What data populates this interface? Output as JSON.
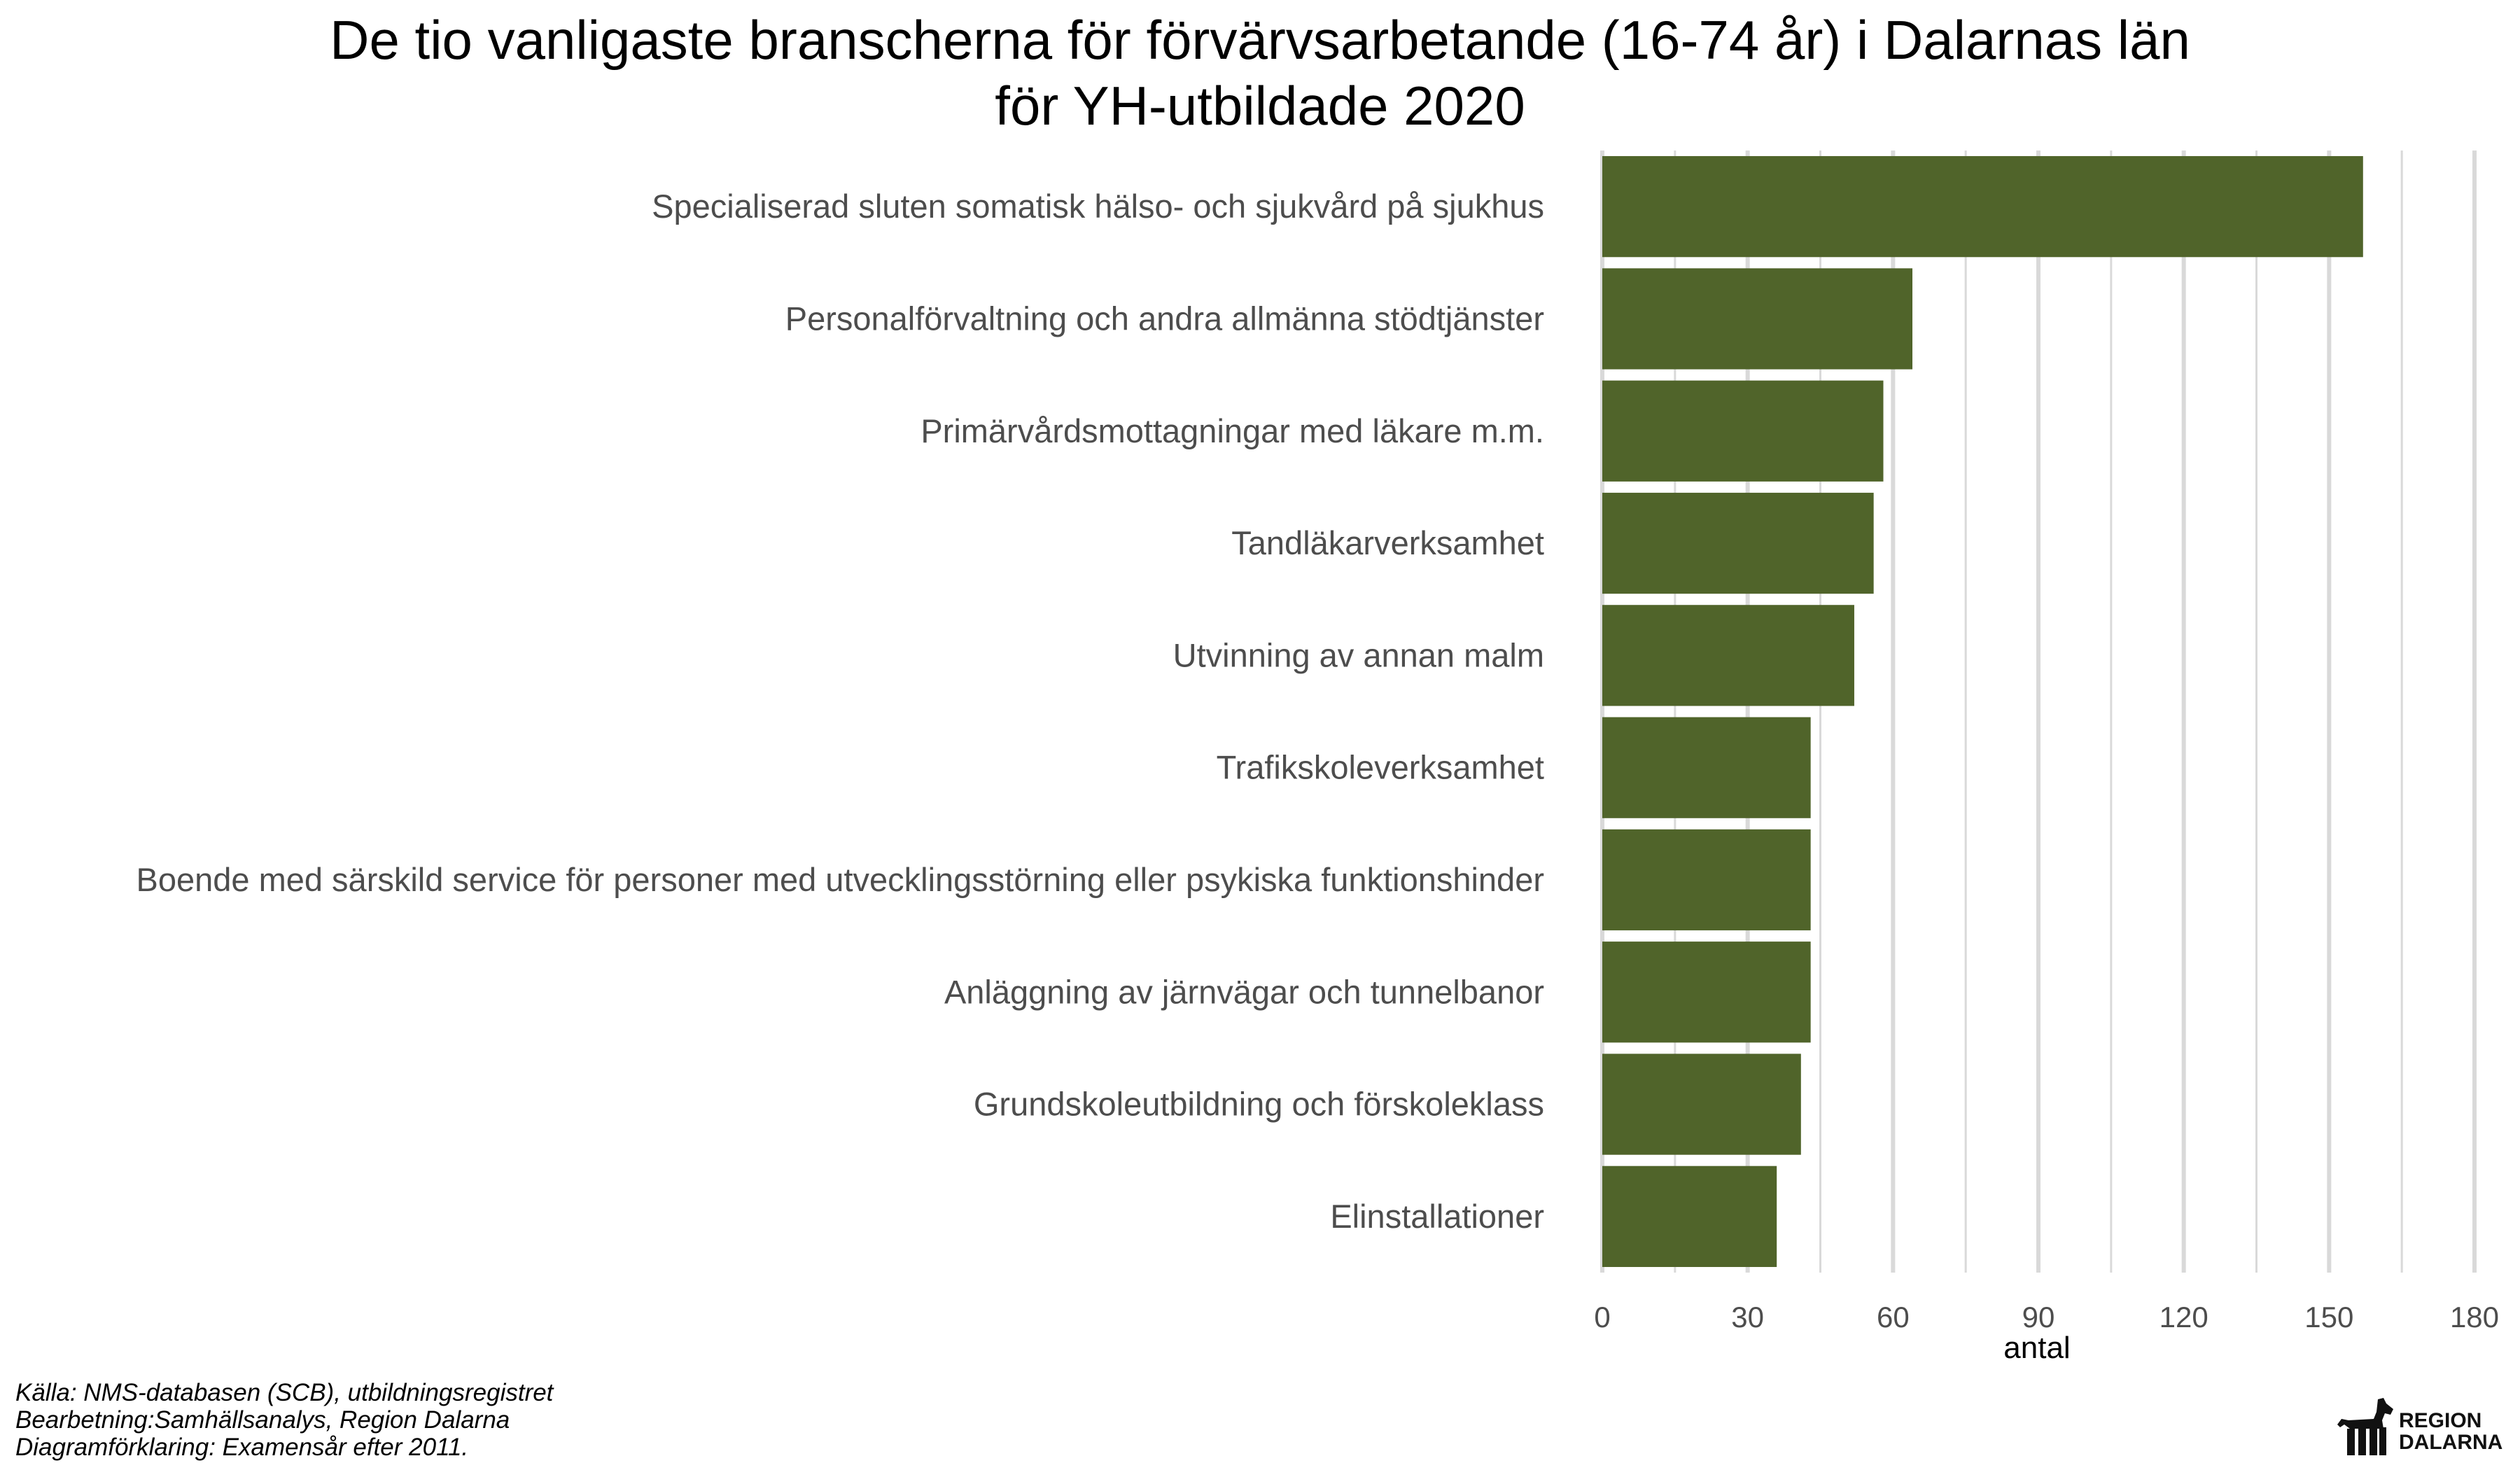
{
  "chart_data": {
    "type": "bar",
    "orientation": "horizontal",
    "title": [
      "De tio vanligaste branscherna för förvärvsarbetande (16-74 år) i Dalarnas län",
      "för YH-utbildade 2020"
    ],
    "xlabel": "antal",
    "ylabel": "",
    "categories": [
      "Specialiserad sluten somatisk hälso- och sjukvård på sjukhus",
      "Personalförvaltning och andra allmänna stödtjänster",
      "Primärvårdsmottagningar med läkare m.m.",
      "Tandläkarverksamhet",
      "Utvinning av annan malm",
      "Trafikskoleverksamhet",
      "Boende med särskild service för personer med utvecklingsstörning eller  psykiska funktionshinder",
      "Anläggning av järnvägar och tunnelbanor",
      "Grundskoleutbildning och förskoleklass",
      "Elinstallationer"
    ],
    "values": [
      157,
      64,
      58,
      56,
      52,
      43,
      43,
      43,
      41,
      36
    ],
    "xlim": [
      0,
      180
    ],
    "ticks": [
      0,
      30,
      60,
      90,
      120,
      150,
      180
    ],
    "tick_labels": [
      "0",
      "30",
      "60",
      "90",
      "120",
      "150",
      "180"
    ],
    "grid": true,
    "bar_color": "#50642a",
    "grid_color": "#d9d9d9"
  },
  "caption": {
    "line1": "Källa: NMS-databasen (SCB), utbildningsregistret",
    "line2": "Bearbetning:Samhällsanalys, Region Dalarna",
    "line3": "Diagramförklaring: Examensår efter 2011."
  },
  "logo": {
    "line1": "REGION",
    "line2": "DALARNA",
    "icon": "dala-horse-icon"
  }
}
